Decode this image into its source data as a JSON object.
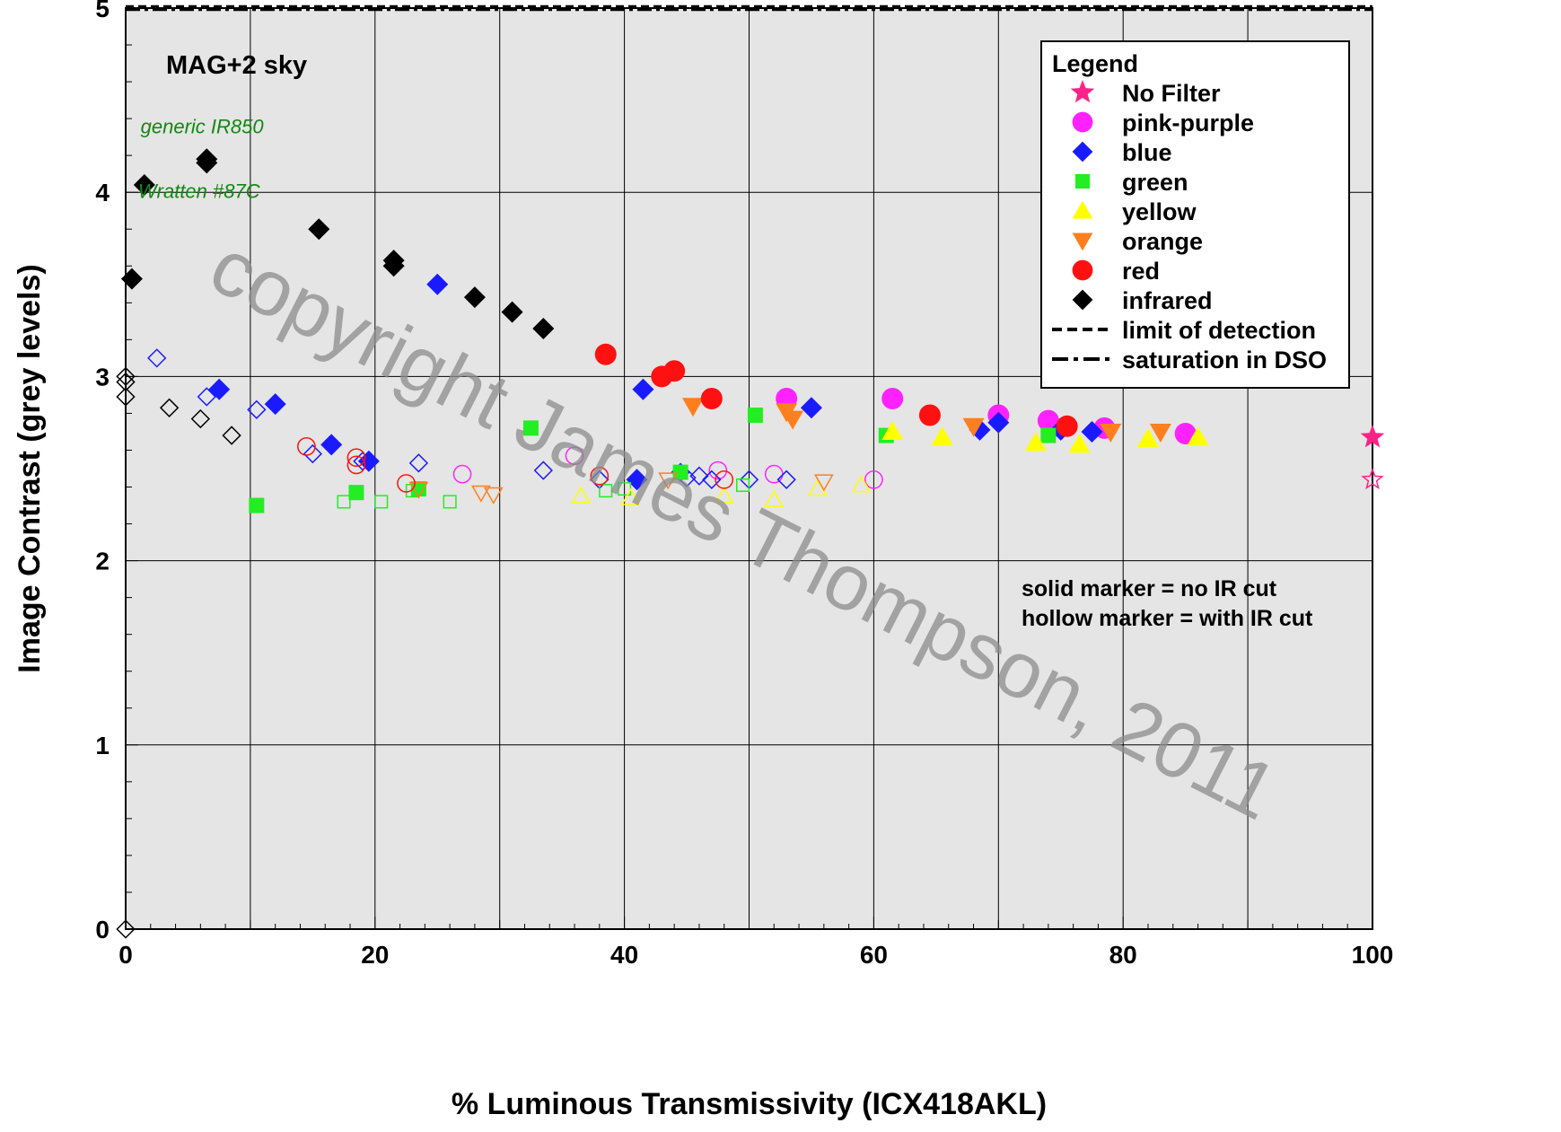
{
  "chart_data": {
    "type": "scatter",
    "xlabel": "% Luminous Transmissivity (ICX418AKL)",
    "ylabel": "Image Contrast (grey levels)",
    "xlim": [
      0,
      100
    ],
    "ylim": [
      0,
      5
    ],
    "x_ticks": [
      "0",
      "20",
      "40",
      "60",
      "80",
      "100"
    ],
    "y_ticks": [
      "0",
      "1",
      "2",
      "3",
      "4",
      "5"
    ],
    "grid": true,
    "sky_label": "MAG+2 sky",
    "legend_position": "top-right",
    "legend": {
      "title": "Legend",
      "entries": [
        {
          "label": "No Filter",
          "marker": "star",
          "color": "#ff2288"
        },
        {
          "label": "pink-purple",
          "marker": "circle",
          "color": "#ff22ff"
        },
        {
          "label": "blue",
          "marker": "diamond",
          "color": "#1a1aff"
        },
        {
          "label": "green",
          "marker": "square",
          "color": "#22ee22"
        },
        {
          "label": "yellow",
          "marker": "triangle-up",
          "color": "#ffff00"
        },
        {
          "label": "orange",
          "marker": "triangle-down",
          "color": "#ff7f1e"
        },
        {
          "label": "red",
          "marker": "circle",
          "color": "#ff1111"
        },
        {
          "label": "infrared",
          "marker": "diamond",
          "color": "#000000"
        },
        {
          "label": "limit of detection",
          "line": "dashed"
        },
        {
          "label": "saturation in DSO",
          "line": "dashdot"
        }
      ]
    },
    "notes": [
      "solid marker = no IR cut",
      "hollow marker = with IR cut"
    ],
    "annotations": [
      {
        "text": "generic IR850",
        "x": 1.2,
        "y": 4.32
      },
      {
        "text": "Wratten #87C",
        "x": 1.0,
        "y": 3.97
      }
    ],
    "reference_lines": [
      {
        "name": "limit of detection",
        "y": 5.01,
        "style": "dashed"
      },
      {
        "name": "saturation in DSO",
        "y": 4.99,
        "style": "dashdot"
      }
    ],
    "watermark": "copyright James Thompson, 2011",
    "series": [
      {
        "name": "No Filter",
        "marker": "star",
        "color": "#ff2288",
        "filled": true,
        "points": [
          [
            100,
            2.67
          ]
        ]
      },
      {
        "name": "No Filter",
        "marker": "star",
        "color": "#ff2288",
        "filled": false,
        "points": [
          [
            100,
            2.44
          ]
        ]
      },
      {
        "name": "pink-purple",
        "marker": "circle",
        "color": "#ff22ff",
        "filled": true,
        "points": [
          [
            53,
            2.88
          ],
          [
            61.5,
            2.88
          ],
          [
            70,
            2.79
          ],
          [
            74,
            2.76
          ],
          [
            78.5,
            2.72
          ],
          [
            85,
            2.69
          ]
        ]
      },
      {
        "name": "pink-purple",
        "marker": "circle",
        "color": "#ff22ff",
        "filled": false,
        "points": [
          [
            27,
            2.47
          ],
          [
            36,
            2.57
          ],
          [
            47.5,
            2.49
          ],
          [
            52,
            2.47
          ],
          [
            60,
            2.44
          ]
        ]
      },
      {
        "name": "blue",
        "marker": "diamond",
        "color": "#1a1aff",
        "filled": true,
        "points": [
          [
            7.5,
            2.93
          ],
          [
            12,
            2.85
          ],
          [
            16.5,
            2.63
          ],
          [
            19.5,
            2.54
          ],
          [
            25,
            3.5
          ],
          [
            41,
            2.44
          ],
          [
            41.5,
            2.93
          ],
          [
            55,
            2.83
          ],
          [
            68.5,
            2.71
          ],
          [
            70,
            2.75
          ],
          [
            75,
            2.71
          ],
          [
            77.5,
            2.7
          ]
        ]
      },
      {
        "name": "blue",
        "marker": "diamond",
        "color": "#1a1aff",
        "filled": false,
        "points": [
          [
            2.5,
            3.1
          ],
          [
            6.5,
            2.89
          ],
          [
            10.5,
            2.82
          ],
          [
            15,
            2.58
          ],
          [
            19,
            2.54
          ],
          [
            23.5,
            2.53
          ],
          [
            33.5,
            2.49
          ],
          [
            38,
            2.44
          ],
          [
            44.5,
            2.48
          ],
          [
            45,
            2.45
          ],
          [
            46,
            2.46
          ],
          [
            47,
            2.44
          ],
          [
            50,
            2.44
          ],
          [
            53,
            2.44
          ]
        ]
      },
      {
        "name": "green",
        "marker": "square",
        "color": "#22ee22",
        "filled": true,
        "points": [
          [
            10.5,
            2.3
          ],
          [
            18.5,
            2.37
          ],
          [
            23.5,
            2.39
          ],
          [
            32.5,
            2.72
          ],
          [
            44.5,
            2.48
          ],
          [
            50.5,
            2.79
          ],
          [
            61,
            2.68
          ],
          [
            74,
            2.68
          ]
        ]
      },
      {
        "name": "green",
        "marker": "square",
        "color": "#22ee22",
        "filled": false,
        "points": [
          [
            17.5,
            2.32
          ],
          [
            20.5,
            2.32
          ],
          [
            23,
            2.38
          ],
          [
            26,
            2.32
          ],
          [
            38.5,
            2.38
          ],
          [
            40,
            2.39
          ],
          [
            49.5,
            2.41
          ]
        ]
      },
      {
        "name": "yellow",
        "marker": "triangle-up",
        "color": "#ffff00",
        "filled": true,
        "points": [
          [
            61.5,
            2.7
          ],
          [
            65.5,
            2.67
          ],
          [
            73,
            2.64
          ],
          [
            76.5,
            2.63
          ],
          [
            82,
            2.66
          ],
          [
            86,
            2.67
          ]
        ]
      },
      {
        "name": "yellow",
        "marker": "triangle-up",
        "color": "#ffff00",
        "filled": false,
        "points": [
          [
            36.5,
            2.35
          ],
          [
            40.5,
            2.34
          ],
          [
            48,
            2.35
          ],
          [
            52,
            2.33
          ],
          [
            55.5,
            2.39
          ],
          [
            59,
            2.41
          ]
        ]
      },
      {
        "name": "orange",
        "marker": "triangle-down",
        "color": "#ff7f1e",
        "filled": true,
        "points": [
          [
            45.5,
            2.84
          ],
          [
            53,
            2.81
          ],
          [
            53.5,
            2.77
          ],
          [
            68,
            2.73
          ],
          [
            79,
            2.7
          ],
          [
            83,
            2.7
          ]
        ]
      },
      {
        "name": "orange",
        "marker": "triangle-down",
        "color": "#ff7f1e",
        "filled": false,
        "points": [
          [
            23.5,
            2.39
          ],
          [
            28.5,
            2.37
          ],
          [
            29.5,
            2.36
          ],
          [
            43.5,
            2.44
          ],
          [
            56,
            2.43
          ]
        ]
      },
      {
        "name": "red",
        "marker": "circle",
        "color": "#ff1111",
        "filled": true,
        "points": [
          [
            38.5,
            3.12
          ],
          [
            43,
            3.0
          ],
          [
            44,
            3.03
          ],
          [
            47,
            2.88
          ],
          [
            64.5,
            2.79
          ],
          [
            75.5,
            2.73
          ]
        ]
      },
      {
        "name": "red",
        "marker": "circle",
        "color": "#ff1111",
        "filled": false,
        "points": [
          [
            14.5,
            2.62
          ],
          [
            18.5,
            2.52
          ],
          [
            18.5,
            2.56
          ],
          [
            22.5,
            2.42
          ],
          [
            38,
            2.46
          ],
          [
            48,
            2.44
          ]
        ]
      },
      {
        "name": "infrared",
        "marker": "diamond",
        "color": "#000000",
        "filled": true,
        "points": [
          [
            0.5,
            3.53
          ],
          [
            1.5,
            4.04
          ],
          [
            6.5,
            4.16
          ],
          [
            6.5,
            4.18
          ],
          [
            15.5,
            3.8
          ],
          [
            21.5,
            3.63
          ],
          [
            21.5,
            3.6
          ],
          [
            28,
            3.43
          ],
          [
            31,
            3.35
          ],
          [
            33.5,
            3.26
          ]
        ]
      },
      {
        "name": "infrared",
        "marker": "diamond",
        "color": "#000000",
        "filled": false,
        "points": [
          [
            0,
            3.0
          ],
          [
            0,
            2.97
          ],
          [
            0,
            2.89
          ],
          [
            3.5,
            2.83
          ],
          [
            6,
            2.77
          ],
          [
            8.5,
            2.68
          ],
          [
            0,
            0
          ]
        ]
      }
    ]
  }
}
